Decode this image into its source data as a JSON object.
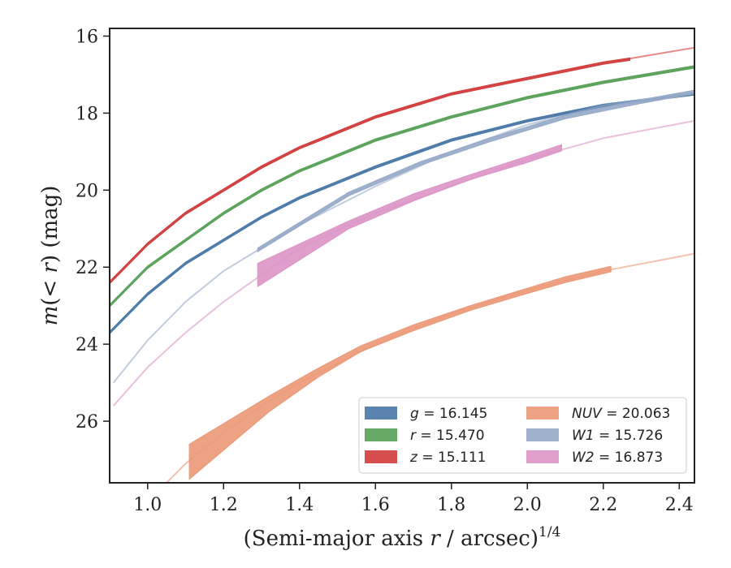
{
  "chart_data": {
    "type": "line",
    "xlabel": "(Semi-major axis r / arcsec)^1/4",
    "ylabel": "m(<r) (mag)",
    "xlim": [
      0.9,
      2.44
    ],
    "ylim": [
      27.6,
      15.8
    ],
    "y_inverted": true,
    "x_ticks": [
      "1.0",
      "1.2",
      "1.4",
      "1.6",
      "1.8",
      "2.0",
      "2.2",
      "2.4"
    ],
    "y_ticks": [
      "16",
      "18",
      "20",
      "22",
      "24",
      "26"
    ],
    "grid": false,
    "legend_position": "lower-right",
    "series": [
      {
        "name": "g = 16.145",
        "color": "#4c7aa8",
        "faint": [
          [
            0.9,
            23.7
          ],
          [
            1.0,
            22.7
          ],
          [
            1.1,
            21.9
          ],
          [
            1.2,
            21.3
          ],
          [
            1.3,
            20.7
          ],
          [
            1.4,
            20.2
          ],
          [
            1.6,
            19.4
          ],
          [
            1.8,
            18.7
          ],
          [
            2.0,
            18.2
          ],
          [
            2.2,
            17.8
          ],
          [
            2.44,
            17.5
          ]
        ],
        "solid": [
          [
            0.9,
            23.7
          ],
          [
            1.0,
            22.7
          ],
          [
            1.1,
            21.9
          ],
          [
            1.2,
            21.3
          ],
          [
            1.3,
            20.7
          ],
          [
            1.4,
            20.2
          ],
          [
            1.6,
            19.4
          ],
          [
            1.8,
            18.7
          ],
          [
            2.0,
            18.2
          ],
          [
            2.2,
            17.8
          ],
          [
            2.44,
            17.5
          ]
        ],
        "width": 0.06
      },
      {
        "name": "r = 15.470",
        "color": "#5aa25a",
        "faint": [
          [
            0.9,
            23.0
          ],
          [
            1.0,
            22.0
          ],
          [
            1.1,
            21.3
          ],
          [
            1.2,
            20.6
          ],
          [
            1.3,
            20.0
          ],
          [
            1.4,
            19.5
          ],
          [
            1.6,
            18.7
          ],
          [
            1.8,
            18.1
          ],
          [
            2.0,
            17.6
          ],
          [
            2.2,
            17.2
          ],
          [
            2.44,
            16.8
          ]
        ],
        "solid": [
          [
            0.9,
            23.0
          ],
          [
            1.0,
            22.0
          ],
          [
            1.1,
            21.3
          ],
          [
            1.2,
            20.6
          ],
          [
            1.3,
            20.0
          ],
          [
            1.4,
            19.5
          ],
          [
            1.6,
            18.7
          ],
          [
            1.8,
            18.1
          ],
          [
            2.0,
            17.6
          ],
          [
            2.2,
            17.2
          ],
          [
            2.44,
            16.8
          ]
        ],
        "width": 0.06
      },
      {
        "name": "z = 15.111",
        "color": "#d23f3f",
        "faint": [
          [
            0.9,
            22.4
          ],
          [
            1.0,
            21.4
          ],
          [
            1.1,
            20.6
          ],
          [
            1.2,
            20.0
          ],
          [
            1.3,
            19.4
          ],
          [
            1.4,
            18.9
          ],
          [
            1.6,
            18.1
          ],
          [
            1.8,
            17.5
          ],
          [
            2.0,
            17.1
          ],
          [
            2.2,
            16.7
          ],
          [
            2.44,
            16.3
          ]
        ],
        "solid": [
          [
            0.9,
            22.4
          ],
          [
            1.0,
            21.4
          ],
          [
            1.1,
            20.6
          ],
          [
            1.2,
            20.0
          ],
          [
            1.3,
            19.4
          ],
          [
            1.4,
            18.9
          ],
          [
            1.6,
            18.1
          ],
          [
            1.8,
            17.5
          ],
          [
            2.0,
            17.1
          ],
          [
            2.2,
            16.7
          ],
          [
            2.27,
            16.6
          ]
        ],
        "width": 0.06
      },
      {
        "name": "NUV = 20.063",
        "color": "#ec9a78",
        "faint": [
          [
            1.05,
            27.6
          ],
          [
            1.1,
            27.1
          ],
          [
            1.2,
            26.3
          ],
          [
            1.3,
            25.6
          ],
          [
            1.4,
            25.0
          ],
          [
            1.6,
            24.0
          ],
          [
            1.8,
            23.2
          ],
          [
            2.0,
            22.6
          ],
          [
            2.2,
            22.1
          ],
          [
            2.44,
            21.65
          ]
        ],
        "solid": [
          [
            1.11,
            27.0
          ],
          [
            1.32,
            25.5
          ],
          [
            1.45,
            24.7
          ],
          [
            1.56,
            24.1
          ],
          [
            1.7,
            23.55
          ],
          [
            1.85,
            23.05
          ],
          [
            2.0,
            22.6
          ],
          [
            2.1,
            22.32
          ],
          [
            2.22,
            22.05
          ]
        ],
        "band_top": [
          [
            1.11,
            26.6
          ],
          [
            1.32,
            25.35
          ],
          [
            1.45,
            24.62
          ],
          [
            1.56,
            24.05
          ],
          [
            1.7,
            23.5
          ],
          [
            1.85,
            23.0
          ],
          [
            2.0,
            22.55
          ],
          [
            2.1,
            22.25
          ],
          [
            2.22,
            21.98
          ]
        ],
        "band_bottom": [
          [
            1.11,
            27.5
          ],
          [
            1.32,
            25.75
          ],
          [
            1.45,
            24.85
          ],
          [
            1.56,
            24.2
          ],
          [
            1.7,
            23.65
          ],
          [
            1.85,
            23.12
          ],
          [
            2.0,
            22.68
          ],
          [
            2.1,
            22.4
          ],
          [
            2.22,
            22.12
          ]
        ]
      },
      {
        "name": "W1 = 15.726",
        "color": "#97aac8",
        "faint": [
          [
            0.91,
            25.0
          ],
          [
            1.0,
            23.9
          ],
          [
            1.1,
            22.9
          ],
          [
            1.2,
            22.1
          ],
          [
            1.3,
            21.5
          ],
          [
            1.4,
            20.9
          ],
          [
            1.6,
            19.9
          ],
          [
            1.8,
            19.0
          ],
          [
            2.0,
            18.3
          ],
          [
            2.2,
            17.8
          ],
          [
            2.44,
            17.45
          ]
        ],
        "solid": [
          [
            1.29,
            21.55
          ],
          [
            1.53,
            20.1
          ],
          [
            1.72,
            19.3
          ],
          [
            1.9,
            18.7
          ],
          [
            2.1,
            18.1
          ],
          [
            2.3,
            17.7
          ],
          [
            2.44,
            17.45
          ]
        ],
        "width": 0.09
      },
      {
        "name": "W2 = 16.873",
        "color": "#dc96c8",
        "faint": [
          [
            0.91,
            25.6
          ],
          [
            1.0,
            24.6
          ],
          [
            1.1,
            23.7
          ],
          [
            1.2,
            22.9
          ],
          [
            1.3,
            22.2
          ],
          [
            1.4,
            21.5
          ],
          [
            1.6,
            20.6
          ],
          [
            1.8,
            19.9
          ],
          [
            2.0,
            19.2
          ],
          [
            2.2,
            18.65
          ],
          [
            2.44,
            18.2
          ]
        ],
        "solid": [
          [
            1.29,
            22.2
          ],
          [
            1.53,
            20.9
          ],
          [
            1.7,
            20.2
          ],
          [
            1.85,
            19.65
          ],
          [
            2.0,
            19.2
          ],
          [
            2.09,
            18.9
          ]
        ],
        "band_top": [
          [
            1.29,
            21.9
          ],
          [
            1.53,
            20.8
          ],
          [
            1.7,
            20.1
          ],
          [
            1.85,
            19.6
          ],
          [
            2.0,
            19.12
          ],
          [
            2.09,
            18.82
          ]
        ],
        "band_bottom": [
          [
            1.29,
            22.5
          ],
          [
            1.53,
            21.0
          ],
          [
            1.7,
            20.28
          ],
          [
            1.85,
            19.72
          ],
          [
            2.0,
            19.28
          ],
          [
            2.09,
            18.98
          ]
        ]
      }
    ]
  }
}
